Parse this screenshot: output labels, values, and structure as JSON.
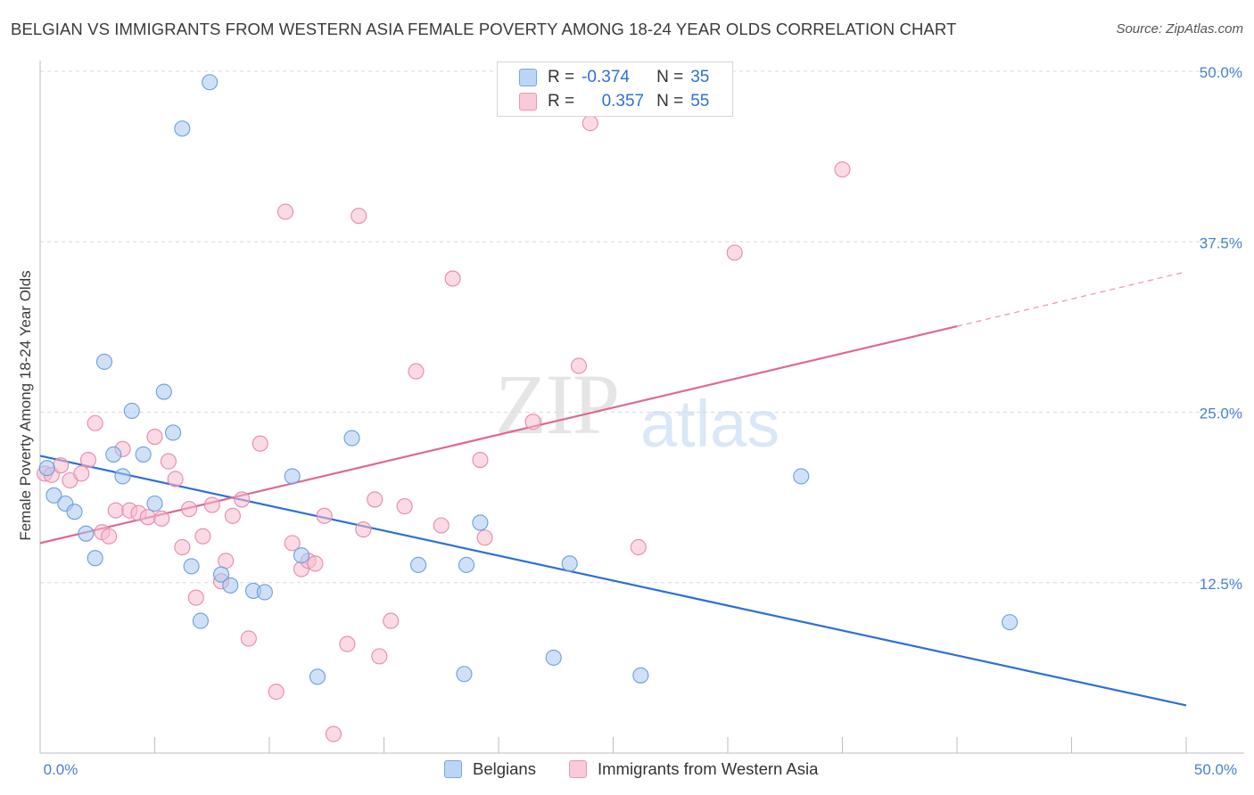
{
  "header": {
    "title": "BELGIAN VS IMMIGRANTS FROM WESTERN ASIA FEMALE POVERTY AMONG 18-24 YEAR OLDS CORRELATION CHART",
    "source": "Source: ZipAtlas.com"
  },
  "legend": {
    "belgians": {
      "r_label": "R =",
      "r_value": "-0.374",
      "n_label": "N =",
      "n_value": "35"
    },
    "immigrants": {
      "r_label": "R =",
      "r_value": "0.357",
      "n_label": "N =",
      "n_value": "55"
    }
  },
  "bottom_legend": {
    "belgians": "Belgians",
    "immigrants": "Immigrants from Western Asia"
  },
  "watermark": {
    "zip": "ZIP",
    "atlas": "atlas"
  },
  "colors": {
    "belgians_fill": "#a9c8f0",
    "belgians_stroke": "#6a9fdf",
    "belgians_line": "#2f6fd6",
    "immigrants_fill": "#f6bcd0",
    "immigrants_stroke": "#e88aaa",
    "immigrants_line": "#e0688f",
    "tick_color": "#4a7fd1",
    "grid_color": "#d9d9d9"
  },
  "chart_data": {
    "type": "scatter",
    "title": "BELGIAN VS IMMIGRANTS FROM WESTERN ASIA FEMALE POVERTY AMONG 18-24 YEAR OLDS CORRELATION CHART",
    "xlabel": "",
    "ylabel": "Female Poverty Among 18-24 Year Olds",
    "xlim": [
      0,
      50
    ],
    "ylim": [
      0,
      50
    ],
    "x_tick_labels": [
      "0.0%",
      "50.0%"
    ],
    "y_ticks": [
      12.5,
      25.0,
      37.5,
      50.0
    ],
    "y_tick_labels": [
      "12.5%",
      "25.0%",
      "37.5%",
      "50.0%"
    ],
    "grid": true,
    "legend_position": "top-center",
    "series": [
      {
        "name": "Belgians",
        "points": [
          [
            0.3,
            20.9
          ],
          [
            0.6,
            18.9
          ],
          [
            1.1,
            18.3
          ],
          [
            1.5,
            17.7
          ],
          [
            2.0,
            16.1
          ],
          [
            2.4,
            14.3
          ],
          [
            2.8,
            28.7
          ],
          [
            3.2,
            21.9
          ],
          [
            3.6,
            20.3
          ],
          [
            4.0,
            25.1
          ],
          [
            4.5,
            21.9
          ],
          [
            5.0,
            18.3
          ],
          [
            5.4,
            26.5
          ],
          [
            5.8,
            23.5
          ],
          [
            6.2,
            45.8
          ],
          [
            6.6,
            13.7
          ],
          [
            7.0,
            9.7
          ],
          [
            7.4,
            49.2
          ],
          [
            7.9,
            13.1
          ],
          [
            8.3,
            12.3
          ],
          [
            9.3,
            11.9
          ],
          [
            9.8,
            11.8
          ],
          [
            11.0,
            20.3
          ],
          [
            11.4,
            14.5
          ],
          [
            12.1,
            5.6
          ],
          [
            13.6,
            23.1
          ],
          [
            16.5,
            13.8
          ],
          [
            18.5,
            5.8
          ],
          [
            18.6,
            13.8
          ],
          [
            19.2,
            16.9
          ],
          [
            22.4,
            7.0
          ],
          [
            23.1,
            13.9
          ],
          [
            26.2,
            5.7
          ],
          [
            33.2,
            20.3
          ],
          [
            42.3,
            9.6
          ]
        ],
        "trend": {
          "x": [
            0,
            50
          ],
          "y": [
            21.8,
            3.5
          ]
        }
      },
      {
        "name": "Immigrants from Western Asia",
        "points": [
          [
            0.2,
            20.5
          ],
          [
            0.5,
            20.4
          ],
          [
            0.9,
            21.1
          ],
          [
            1.3,
            20.0
          ],
          [
            1.8,
            20.5
          ],
          [
            2.1,
            21.5
          ],
          [
            2.4,
            24.2
          ],
          [
            2.7,
            16.2
          ],
          [
            3.0,
            15.9
          ],
          [
            3.3,
            17.8
          ],
          [
            3.6,
            22.3
          ],
          [
            3.9,
            17.8
          ],
          [
            4.3,
            17.6
          ],
          [
            4.7,
            17.3
          ],
          [
            5.0,
            23.2
          ],
          [
            5.3,
            17.2
          ],
          [
            5.6,
            21.4
          ],
          [
            5.9,
            20.1
          ],
          [
            6.2,
            15.1
          ],
          [
            6.5,
            17.9
          ],
          [
            6.8,
            11.4
          ],
          [
            7.1,
            15.9
          ],
          [
            7.5,
            18.2
          ],
          [
            7.9,
            12.6
          ],
          [
            8.1,
            14.1
          ],
          [
            8.4,
            17.4
          ],
          [
            8.8,
            18.6
          ],
          [
            9.1,
            8.4
          ],
          [
            9.6,
            22.7
          ],
          [
            10.3,
            4.5
          ],
          [
            10.7,
            39.7
          ],
          [
            11.0,
            15.4
          ],
          [
            11.4,
            13.5
          ],
          [
            11.7,
            14.1
          ],
          [
            12.0,
            13.9
          ],
          [
            12.4,
            17.4
          ],
          [
            12.8,
            1.4
          ],
          [
            13.4,
            8.0
          ],
          [
            13.9,
            39.4
          ],
          [
            14.1,
            16.4
          ],
          [
            14.6,
            18.6
          ],
          [
            14.8,
            7.1
          ],
          [
            15.3,
            9.7
          ],
          [
            15.9,
            18.1
          ],
          [
            16.4,
            28.0
          ],
          [
            17.5,
            16.7
          ],
          [
            18.0,
            34.8
          ],
          [
            19.2,
            21.5
          ],
          [
            19.4,
            15.8
          ],
          [
            21.5,
            24.3
          ],
          [
            23.5,
            28.4
          ],
          [
            24.0,
            46.2
          ],
          [
            26.1,
            15.1
          ],
          [
            30.3,
            36.7
          ],
          [
            35.0,
            42.8
          ]
        ],
        "trend": {
          "x": [
            0,
            40
          ],
          "y": [
            15.4,
            31.3
          ]
        },
        "trend_extension": {
          "x": [
            40,
            50
          ],
          "y": [
            31.3,
            35.3
          ]
        }
      }
    ]
  }
}
